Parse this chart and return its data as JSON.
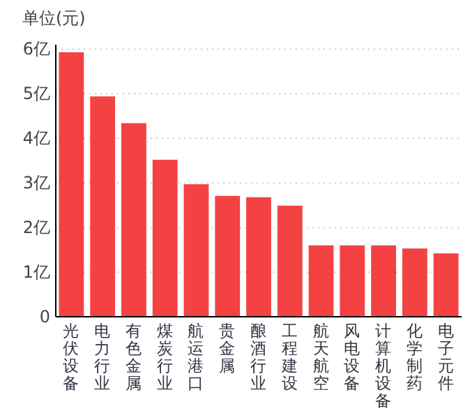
{
  "chart_data": {
    "type": "bar",
    "ylabel": "单位(元)",
    "categories": [
      "光伏设备",
      "电力行业",
      "有色金属",
      "煤炭行业",
      "航运港口",
      "贵金属",
      "酿酒行业",
      "工程建设",
      "航天航空",
      "风电设备",
      "计算机设备",
      "化学制药",
      "电子元件"
    ],
    "values": [
      5.93,
      4.94,
      4.34,
      3.52,
      2.97,
      2.71,
      2.68,
      2.49,
      1.6,
      1.6,
      1.6,
      1.53,
      1.42
    ],
    "color": "#f44242",
    "ylim": [
      0,
      6.1
    ],
    "yticks": [
      0,
      {
        "value": 1,
        "label": "1亿"
      },
      {
        "value": 2,
        "label": "2亿"
      },
      {
        "value": 3,
        "label": "3亿"
      },
      {
        "value": 4,
        "label": "4亿"
      },
      {
        "value": 5,
        "label": "5亿"
      },
      {
        "value": 6,
        "label": "6亿"
      }
    ],
    "grid": "y"
  }
}
